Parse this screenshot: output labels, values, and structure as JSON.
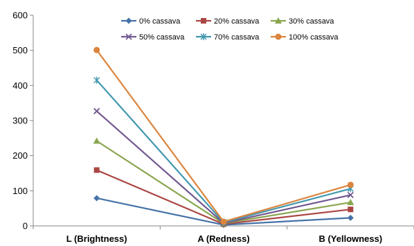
{
  "chart_data": {
    "type": "line",
    "categories": [
      "L (Brightness)",
      "A (Redness)",
      "B (Yellowness)"
    ],
    "ylim": [
      0,
      600
    ],
    "yticks": [
      0,
      100,
      200,
      300,
      400,
      500,
      600
    ],
    "grid": false,
    "legend_position": "top",
    "series": [
      {
        "name": "0% cassava",
        "color": "#4572A7",
        "marker": "diamond",
        "values": [
          79,
          3,
          23
        ]
      },
      {
        "name": "20% cassava",
        "color": "#AA4643",
        "marker": "square",
        "values": [
          159,
          5,
          47
        ]
      },
      {
        "name": "30% cassava",
        "color": "#89A54E",
        "marker": "triangle",
        "values": [
          242,
          7,
          67
        ]
      },
      {
        "name": "50% cassava",
        "color": "#71588F",
        "marker": "x",
        "values": [
          327,
          8,
          88
        ]
      },
      {
        "name": "70% cassava",
        "color": "#4198AF",
        "marker": "star",
        "values": [
          415,
          10,
          106
        ]
      },
      {
        "name": "100% cassava",
        "color": "#DB843D",
        "marker": "circle",
        "values": [
          501,
          12,
          117
        ]
      }
    ]
  }
}
